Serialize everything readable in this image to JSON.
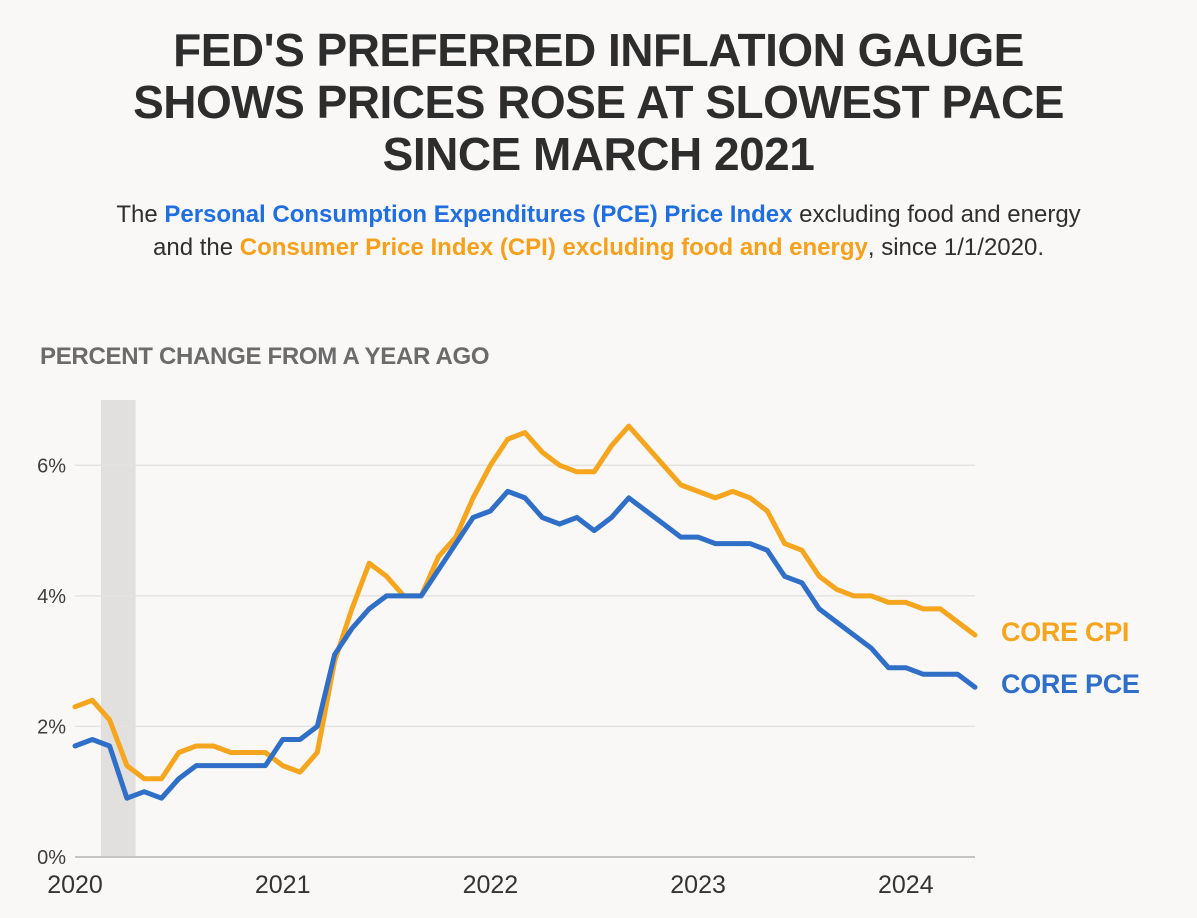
{
  "title": {
    "line1": "FED'S PREFERRED INFLATION GAUGE",
    "line2": "SHOWS PRICES ROSE AT SLOWEST PACE",
    "line3": "SINCE MARCH 2021"
  },
  "subtitle": {
    "prefix": "The ",
    "pce_text": "Personal Consumption Expenditures (PCE) Price Index",
    "middle": " excluding food and energy and the ",
    "cpi_text": "Consumer Price Index (CPI) excluding food and energy",
    "suffix": ", since 1/1/2020."
  },
  "colors": {
    "title_text": "#2d2d2d",
    "pce_blue": "#1f6fe0",
    "cpi_orange": "#f6a01b",
    "background": "#f9f8f6"
  },
  "chart_data": {
    "type": "line",
    "ylabel": "PERCENT CHANGE FROM A YEAR AGO",
    "ylim": [
      0,
      7
    ],
    "yticks": [
      "0%",
      "2%",
      "4%",
      "6%"
    ],
    "xticks": [
      "2020",
      "2021",
      "2022",
      "2023",
      "2024"
    ],
    "grid": true,
    "legend_position": "right-of-line-ends",
    "recession_band": {
      "from": "2020-02",
      "to": "2020-04",
      "color": "#e1e0de"
    },
    "categories": [
      "2020-01",
      "2020-02",
      "2020-03",
      "2020-04",
      "2020-05",
      "2020-06",
      "2020-07",
      "2020-08",
      "2020-09",
      "2020-10",
      "2020-11",
      "2020-12",
      "2021-01",
      "2021-02",
      "2021-03",
      "2021-04",
      "2021-05",
      "2021-06",
      "2021-07",
      "2021-08",
      "2021-09",
      "2021-10",
      "2021-11",
      "2021-12",
      "2022-01",
      "2022-02",
      "2022-03",
      "2022-04",
      "2022-05",
      "2022-06",
      "2022-07",
      "2022-08",
      "2022-09",
      "2022-10",
      "2022-11",
      "2022-12",
      "2023-01",
      "2023-02",
      "2023-03",
      "2023-04",
      "2023-05",
      "2023-06",
      "2023-07",
      "2023-08",
      "2023-09",
      "2023-10",
      "2023-11",
      "2023-12",
      "2024-01",
      "2024-02",
      "2024-03",
      "2024-04",
      "2024-05"
    ],
    "series": [
      {
        "name": "CORE CPI",
        "color": "#f6a51e",
        "values": [
          2.3,
          2.4,
          2.1,
          1.4,
          1.2,
          1.2,
          1.6,
          1.7,
          1.7,
          1.6,
          1.6,
          1.6,
          1.4,
          1.3,
          1.6,
          3.0,
          3.8,
          4.5,
          4.3,
          4.0,
          4.0,
          4.6,
          4.9,
          5.5,
          6.0,
          6.4,
          6.5,
          6.2,
          6.0,
          5.9,
          5.9,
          6.3,
          6.6,
          6.3,
          6.0,
          5.7,
          5.6,
          5.5,
          5.6,
          5.5,
          5.3,
          4.8,
          4.7,
          4.3,
          4.1,
          4.0,
          4.0,
          3.9,
          3.9,
          3.8,
          3.8,
          3.6,
          3.4
        ]
      },
      {
        "name": "CORE PCE",
        "color": "#2f6fc8",
        "values": [
          1.7,
          1.8,
          1.7,
          0.9,
          1.0,
          0.9,
          1.2,
          1.4,
          1.4,
          1.4,
          1.4,
          1.4,
          1.8,
          1.8,
          2.0,
          3.1,
          3.5,
          3.8,
          4.0,
          4.0,
          4.0,
          4.4,
          4.8,
          5.2,
          5.3,
          5.6,
          5.5,
          5.2,
          5.1,
          5.2,
          5.0,
          5.2,
          5.5,
          5.3,
          5.1,
          4.9,
          4.9,
          4.8,
          4.8,
          4.8,
          4.7,
          4.3,
          4.2,
          3.8,
          3.6,
          3.4,
          3.2,
          2.9,
          2.9,
          2.8,
          2.8,
          2.8,
          2.6
        ]
      }
    ]
  }
}
